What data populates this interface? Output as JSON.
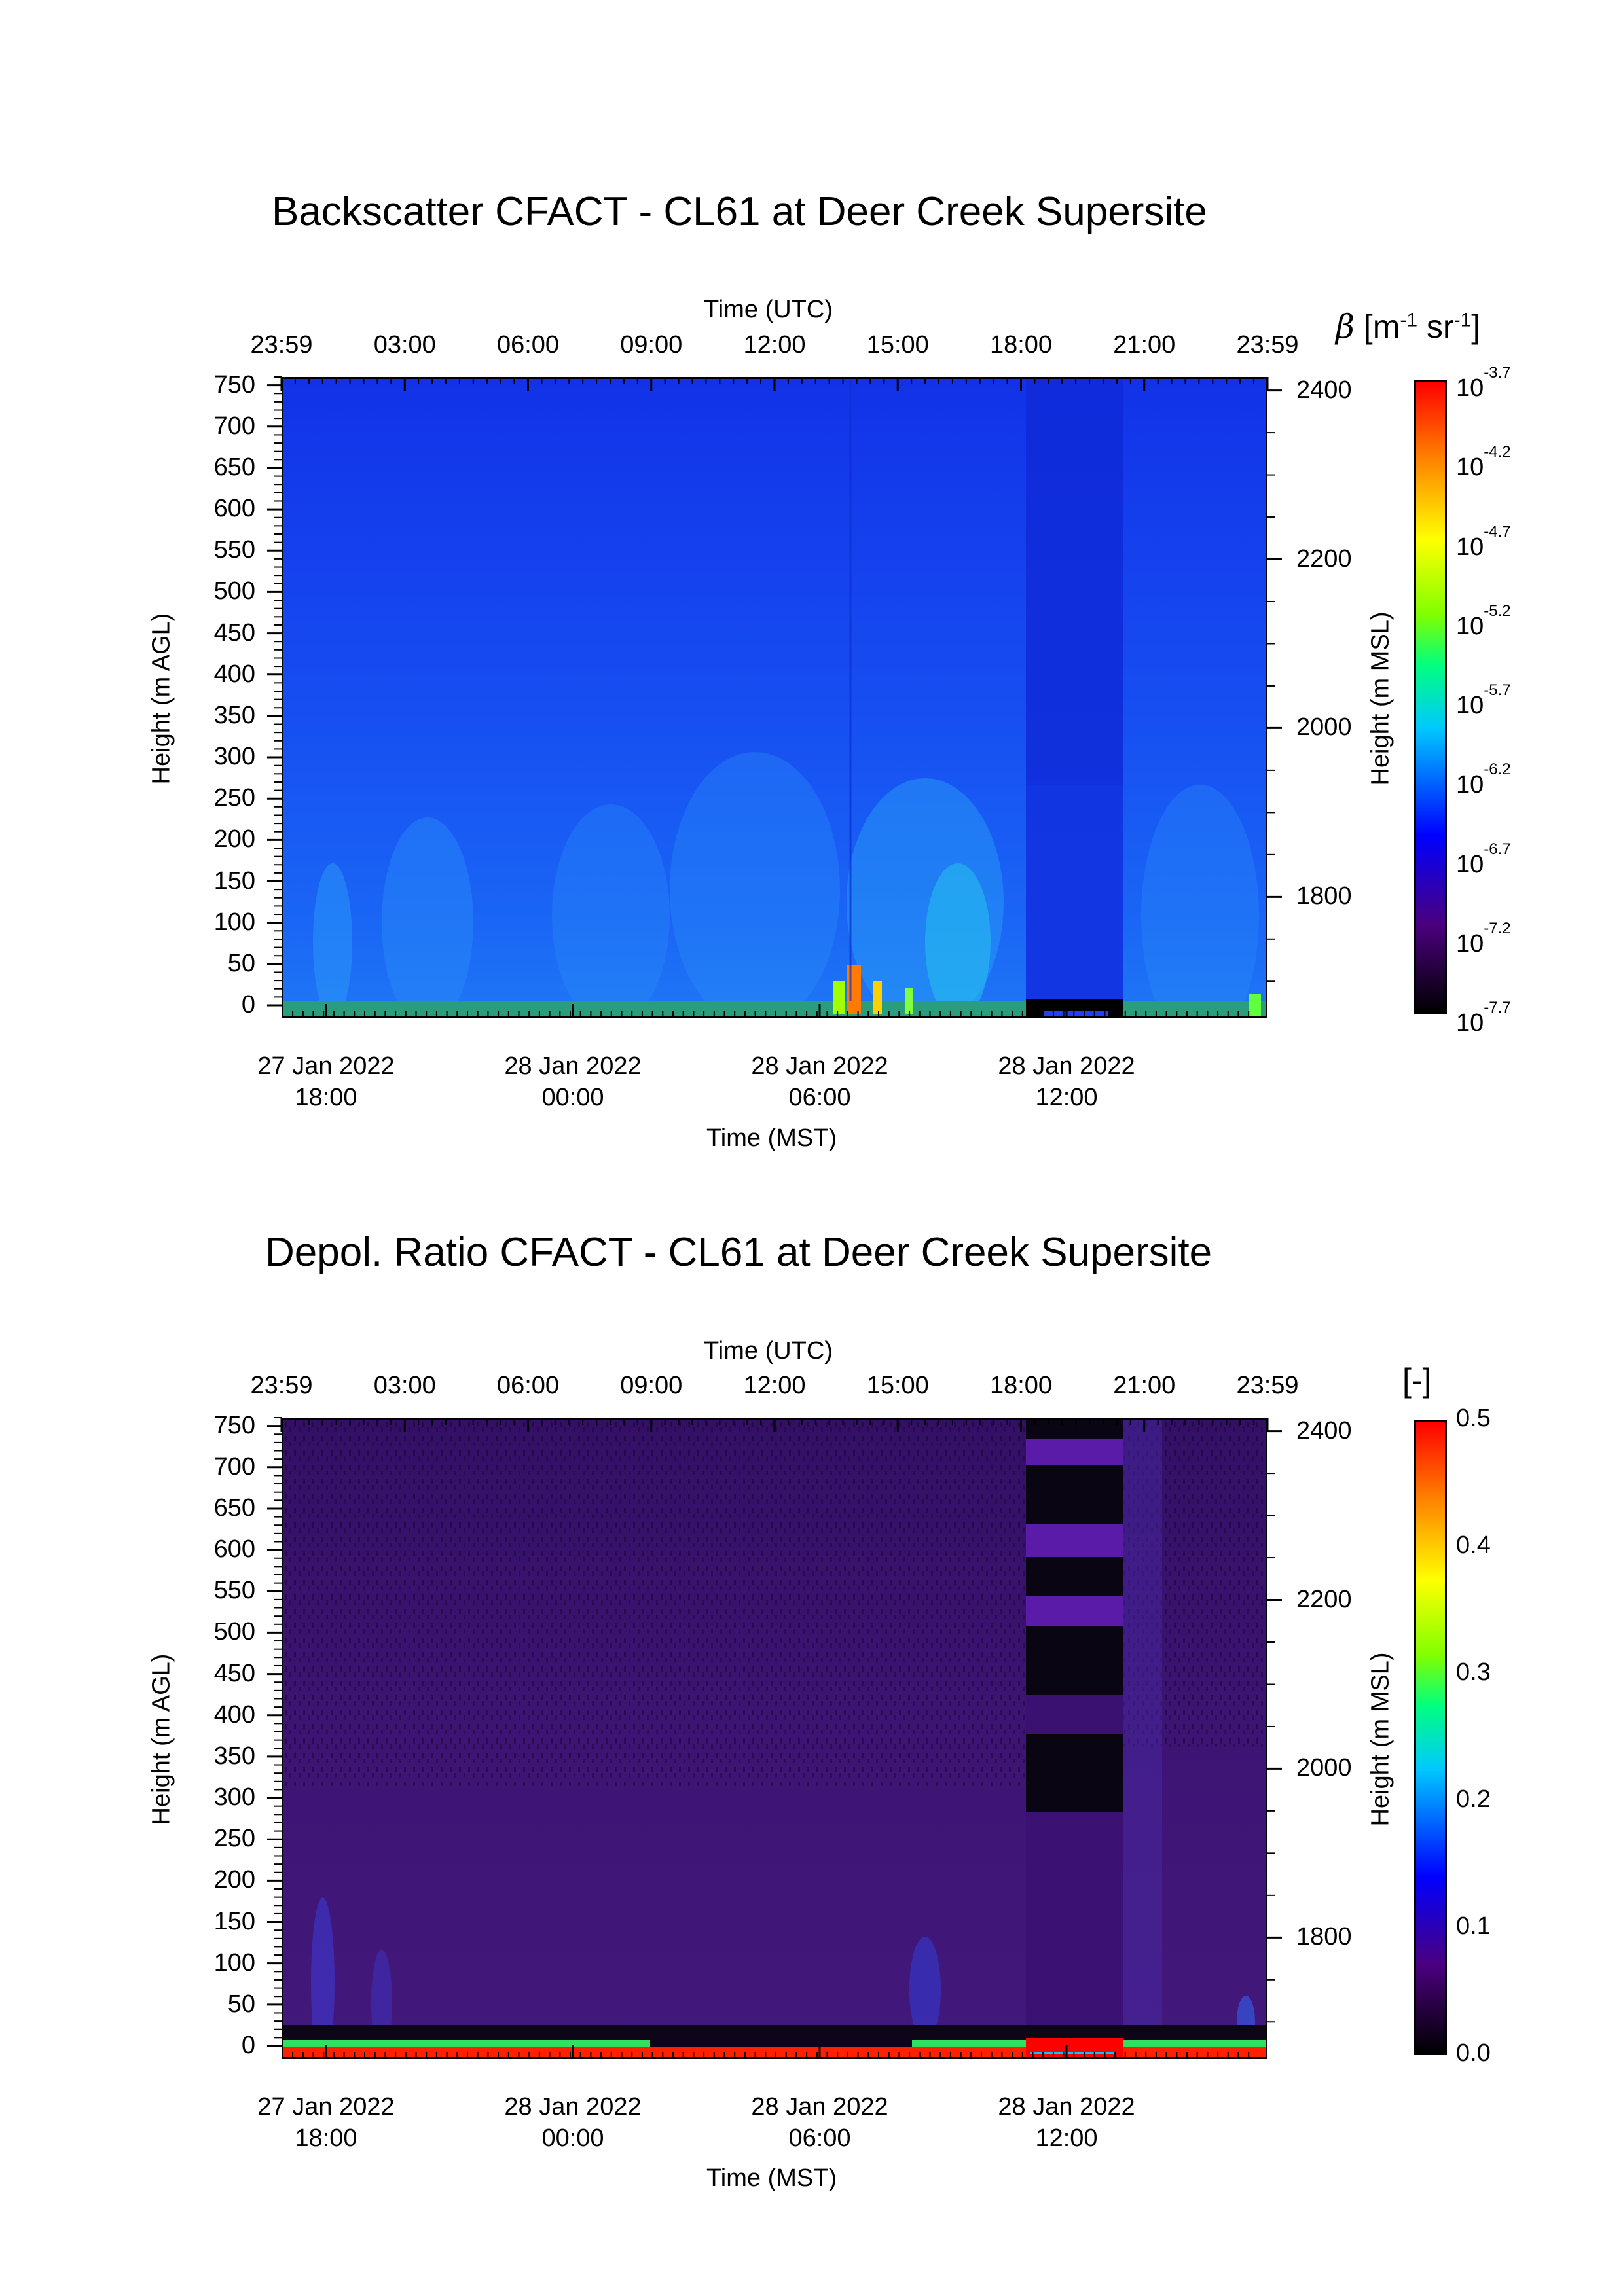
{
  "chart_data": [
    {
      "type": "heatmap",
      "title": "Backscatter CFACT - CL61 at Deer Creek Supersite",
      "x_top_label": "Time (UTC)",
      "x_top_ticks": [
        "23:59",
        "03:00",
        "06:00",
        "09:00",
        "12:00",
        "15:00",
        "18:00",
        "21:00",
        "23:59"
      ],
      "x_bottom_label": "Time (MST)",
      "x_bottom_ticks": [
        {
          "date": "27 Jan 2022",
          "time": "18:00"
        },
        {
          "date": "28 Jan 2022",
          "time": "00:00"
        },
        {
          "date": "28 Jan 2022",
          "time": "06:00"
        },
        {
          "date": "28 Jan 2022",
          "time": "12:00"
        }
      ],
      "y_left_label": "Height (m AGL)",
      "y_left_ticks": [
        0,
        50,
        100,
        150,
        200,
        250,
        300,
        350,
        400,
        450,
        500,
        550,
        600,
        650,
        700,
        750
      ],
      "y_left_range": [
        0,
        760
      ],
      "y_right_label": "Height (m MSL)",
      "y_right_ticks": [
        1800,
        2000,
        2200,
        2400
      ],
      "colorbar_label": "β [m-1 sr-1]",
      "colorbar_scale": "log",
      "colorbar_ticks": [
        "-3.7",
        "-4.2",
        "-4.7",
        "-5.2",
        "-5.7",
        "-6.2",
        "-6.7",
        "-7.2",
        "-7.7"
      ],
      "colorbar_base": "10",
      "colormap": [
        "#000000",
        "#4b007f",
        "#0000ff",
        "#00c8ff",
        "#00ff80",
        "#80ff00",
        "#ffff00",
        "#ff8000",
        "#ff0000"
      ],
      "background_color": "#1546f0"
    },
    {
      "type": "heatmap",
      "title": "Depol. Ratio CFACT - CL61 at Deer Creek Supersite",
      "x_top_label": "Time (UTC)",
      "x_top_ticks": [
        "23:59",
        "03:00",
        "06:00",
        "09:00",
        "12:00",
        "15:00",
        "18:00",
        "21:00",
        "23:59"
      ],
      "x_bottom_label": "Time (MST)",
      "x_bottom_ticks": [
        {
          "date": "27 Jan 2022",
          "time": "18:00"
        },
        {
          "date": "28 Jan 2022",
          "time": "00:00"
        },
        {
          "date": "28 Jan 2022",
          "time": "06:00"
        },
        {
          "date": "28 Jan 2022",
          "time": "12:00"
        }
      ],
      "y_left_label": "Height (m AGL)",
      "y_left_ticks": [
        0,
        50,
        100,
        150,
        200,
        250,
        300,
        350,
        400,
        450,
        500,
        550,
        600,
        650,
        700,
        750
      ],
      "y_left_range": [
        0,
        760
      ],
      "y_right_label": "Height (m MSL)",
      "y_right_ticks": [
        1800,
        2000,
        2200,
        2400
      ],
      "colorbar_label": "[-]",
      "colorbar_scale": "linear",
      "colorbar_ticks": [
        "0.5",
        "0.4",
        "0.3",
        "0.2",
        "0.1",
        "0.0"
      ],
      "colormap": [
        "#000000",
        "#4b007f",
        "#0000ff",
        "#00c8ff",
        "#00ff80",
        "#80ff00",
        "#ffff00",
        "#ff8000",
        "#ff0000"
      ],
      "background_color": "#3f1478"
    }
  ]
}
